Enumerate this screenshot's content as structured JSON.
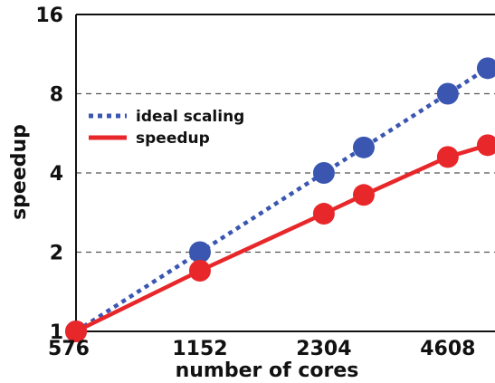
{
  "chart_data": {
    "type": "line",
    "xlabel": "number of cores",
    "ylabel": "speedup",
    "x_scale": "log2",
    "y_scale": "log2",
    "xlim": [
      576,
      6000
    ],
    "ylim": [
      1,
      16
    ],
    "x_ticks": [
      576,
      1152,
      2304,
      4608
    ],
    "x_tick_labels": [
      "576",
      "1152",
      "2304",
      "4608"
    ],
    "y_ticks": [
      1,
      2,
      4,
      8,
      16
    ],
    "y_tick_labels": [
      "1",
      "2",
      "4",
      "8",
      "16"
    ],
    "grid": "horizontal dashed",
    "legend_position": "upper-left",
    "series": [
      {
        "name": "ideal scaling",
        "style": "dotted",
        "color": "#3a56b0",
        "x": [
          576,
          1152,
          2304,
          2880,
          4608,
          5760
        ],
        "y": [
          1,
          2,
          4,
          5,
          8,
          10
        ]
      },
      {
        "name": "speedup",
        "style": "solid",
        "color": "#e8272a",
        "x": [
          576,
          1152,
          2304,
          2880,
          4608,
          5760
        ],
        "y": [
          1,
          1.7,
          2.8,
          3.3,
          4.6,
          5.1
        ]
      }
    ]
  }
}
